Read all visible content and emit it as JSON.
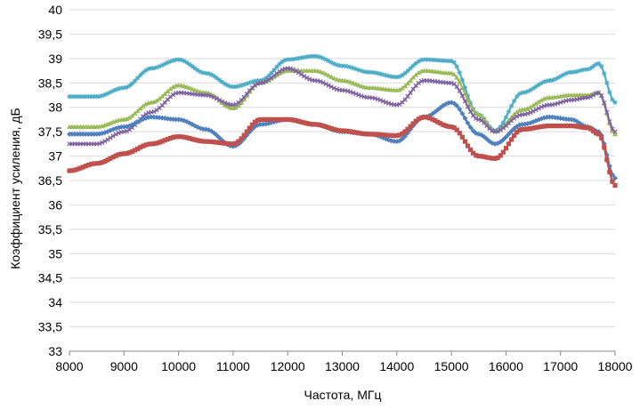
{
  "chart_data": {
    "type": "line",
    "xlabel": "Частота, МГц",
    "ylabel": "Коэффициент усиления, дБ",
    "xlim": [
      8000,
      18000
    ],
    "ylim": [
      33,
      40
    ],
    "x_ticks": [
      "8000",
      "9000",
      "10000",
      "11000",
      "12000",
      "13000",
      "14000",
      "15000",
      "16000",
      "17000",
      "18000"
    ],
    "y_ticks": [
      "33",
      "33,5",
      "34",
      "34,5",
      "35",
      "35,5",
      "36",
      "36,5",
      "37",
      "37,5",
      "38",
      "38,5",
      "39",
      "39,5",
      "40"
    ],
    "grid": "horizontal",
    "legend": "none",
    "series": [
      {
        "color": "#4BACC6",
        "marker": "star",
        "points": [
          [
            8000,
            38.22
          ],
          [
            8500,
            38.22
          ],
          [
            9000,
            38.4
          ],
          [
            9500,
            38.8
          ],
          [
            10000,
            38.98
          ],
          [
            10500,
            38.7
          ],
          [
            11000,
            38.42
          ],
          [
            11500,
            38.55
          ],
          [
            12000,
            38.98
          ],
          [
            12500,
            39.05
          ],
          [
            13000,
            38.85
          ],
          [
            13500,
            38.72
          ],
          [
            14000,
            38.62
          ],
          [
            14500,
            38.98
          ],
          [
            15000,
            38.95
          ],
          [
            15500,
            37.85
          ],
          [
            15800,
            37.52
          ],
          [
            16300,
            38.3
          ],
          [
            16800,
            38.55
          ],
          [
            17200,
            38.72
          ],
          [
            17500,
            38.78
          ],
          [
            17700,
            38.9
          ],
          [
            18000,
            38.1
          ]
        ]
      },
      {
        "color": "#9BBB59",
        "marker": "triangle",
        "points": [
          [
            8000,
            37.6
          ],
          [
            8500,
            37.6
          ],
          [
            9000,
            37.75
          ],
          [
            9500,
            38.1
          ],
          [
            10000,
            38.45
          ],
          [
            10500,
            38.3
          ],
          [
            11000,
            37.98
          ],
          [
            11500,
            38.5
          ],
          [
            12000,
            38.75
          ],
          [
            12500,
            38.75
          ],
          [
            13000,
            38.55
          ],
          [
            13500,
            38.4
          ],
          [
            14000,
            38.35
          ],
          [
            14500,
            38.75
          ],
          [
            15000,
            38.7
          ],
          [
            15500,
            37.85
          ],
          [
            15800,
            37.5
          ],
          [
            16300,
            37.95
          ],
          [
            16800,
            38.2
          ],
          [
            17200,
            38.25
          ],
          [
            17500,
            38.25
          ],
          [
            17700,
            38.3
          ],
          [
            18000,
            37.45
          ]
        ]
      },
      {
        "color": "#8064A2",
        "marker": "x",
        "points": [
          [
            8000,
            37.25
          ],
          [
            8500,
            37.25
          ],
          [
            9000,
            37.5
          ],
          [
            9500,
            37.9
          ],
          [
            10000,
            38.3
          ],
          [
            10500,
            38.25
          ],
          [
            11000,
            38.05
          ],
          [
            11500,
            38.5
          ],
          [
            12000,
            38.8
          ],
          [
            12500,
            38.55
          ],
          [
            13000,
            38.35
          ],
          [
            13500,
            38.2
          ],
          [
            14000,
            38.05
          ],
          [
            14500,
            38.55
          ],
          [
            15000,
            38.5
          ],
          [
            15500,
            37.75
          ],
          [
            15800,
            37.5
          ],
          [
            16300,
            37.85
          ],
          [
            16800,
            38.05
          ],
          [
            17200,
            38.15
          ],
          [
            17500,
            38.2
          ],
          [
            17700,
            38.3
          ],
          [
            18000,
            37.5
          ]
        ]
      },
      {
        "color": "#4F81BD",
        "marker": "diamond",
        "points": [
          [
            8000,
            37.45
          ],
          [
            8500,
            37.45
          ],
          [
            9000,
            37.6
          ],
          [
            9500,
            37.8
          ],
          [
            10000,
            37.75
          ],
          [
            10500,
            37.55
          ],
          [
            11000,
            37.2
          ],
          [
            11500,
            37.65
          ],
          [
            12000,
            37.75
          ],
          [
            12500,
            37.65
          ],
          [
            13000,
            37.5
          ],
          [
            13500,
            37.45
          ],
          [
            14000,
            37.3
          ],
          [
            14500,
            37.8
          ],
          [
            15000,
            38.1
          ],
          [
            15500,
            37.45
          ],
          [
            15800,
            37.25
          ],
          [
            16300,
            37.65
          ],
          [
            16800,
            37.8
          ],
          [
            17200,
            37.75
          ],
          [
            17500,
            37.6
          ],
          [
            17700,
            37.5
          ],
          [
            18000,
            36.55
          ]
        ]
      },
      {
        "color": "#C0504D",
        "marker": "square",
        "points": [
          [
            8000,
            36.7
          ],
          [
            8500,
            36.85
          ],
          [
            9000,
            37.05
          ],
          [
            9500,
            37.25
          ],
          [
            10000,
            37.4
          ],
          [
            10500,
            37.3
          ],
          [
            11000,
            37.25
          ],
          [
            11500,
            37.75
          ],
          [
            12000,
            37.75
          ],
          [
            12500,
            37.65
          ],
          [
            13000,
            37.52
          ],
          [
            13500,
            37.45
          ],
          [
            14000,
            37.42
          ],
          [
            14500,
            37.8
          ],
          [
            15000,
            37.6
          ],
          [
            15500,
            37.0
          ],
          [
            15800,
            36.95
          ],
          [
            16300,
            37.55
          ],
          [
            16800,
            37.62
          ],
          [
            17200,
            37.62
          ],
          [
            17500,
            37.58
          ],
          [
            17700,
            37.45
          ],
          [
            18000,
            36.4
          ]
        ]
      }
    ]
  }
}
